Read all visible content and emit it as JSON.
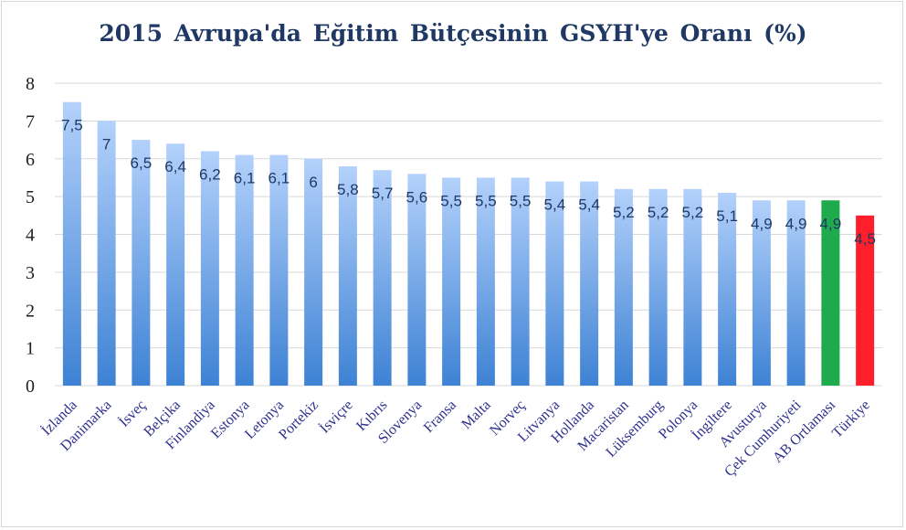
{
  "chart_data": {
    "type": "bar",
    "title": "2015 Avrupa'da  Eğitim  Bütçesinin  GSYH'ye Oranı (%)",
    "categories": [
      "İzlanda",
      "Danimarka",
      "İsveç",
      "Belçika",
      "Finlandiya",
      "Estonya",
      "Letonya",
      "Portekiz",
      "İsviçre",
      "Kıbrıs",
      "Slovenya",
      "Fransa",
      "Malta",
      "Norveç",
      "Litvanya",
      "Hollanda",
      "Macaristan",
      "Lüksemburg",
      "Polonya",
      "İngiltere",
      "Avusturya",
      "Çek Cumhuriyeti",
      "AB Ortlaması",
      "Türkiye"
    ],
    "values": [
      7.5,
      7,
      6.5,
      6.4,
      6.2,
      6.1,
      6.1,
      6,
      5.8,
      5.7,
      5.6,
      5.5,
      5.5,
      5.5,
      5.4,
      5.4,
      5.2,
      5.2,
      5.2,
      5.1,
      4.9,
      4.9,
      4.9,
      4.5
    ],
    "data_labels": [
      "7,5",
      "7",
      "6,5",
      "6,4",
      "6,2",
      "6,1",
      "6,1",
      "6",
      "5,8",
      "5,7",
      "5,6",
      "5,5",
      "5,5",
      "5,5",
      "5,4",
      "5,4",
      "5,2",
      "5,2",
      "5,2",
      "5,1",
      "4,9",
      "4,9",
      "4,9",
      "4,5"
    ],
    "bar_colors": {
      "default_top": "#b3d1fb",
      "default_bottom": "#3e82d4",
      "AB Ortlaması": "#1faa4e",
      "Türkiye": "#ff1f2a"
    },
    "ylim": [
      0,
      8
    ],
    "yticks": [
      "0",
      "1",
      "2",
      "3",
      "4",
      "5",
      "6",
      "7",
      "8"
    ],
    "grid": true,
    "xlabel": "",
    "ylabel": ""
  }
}
